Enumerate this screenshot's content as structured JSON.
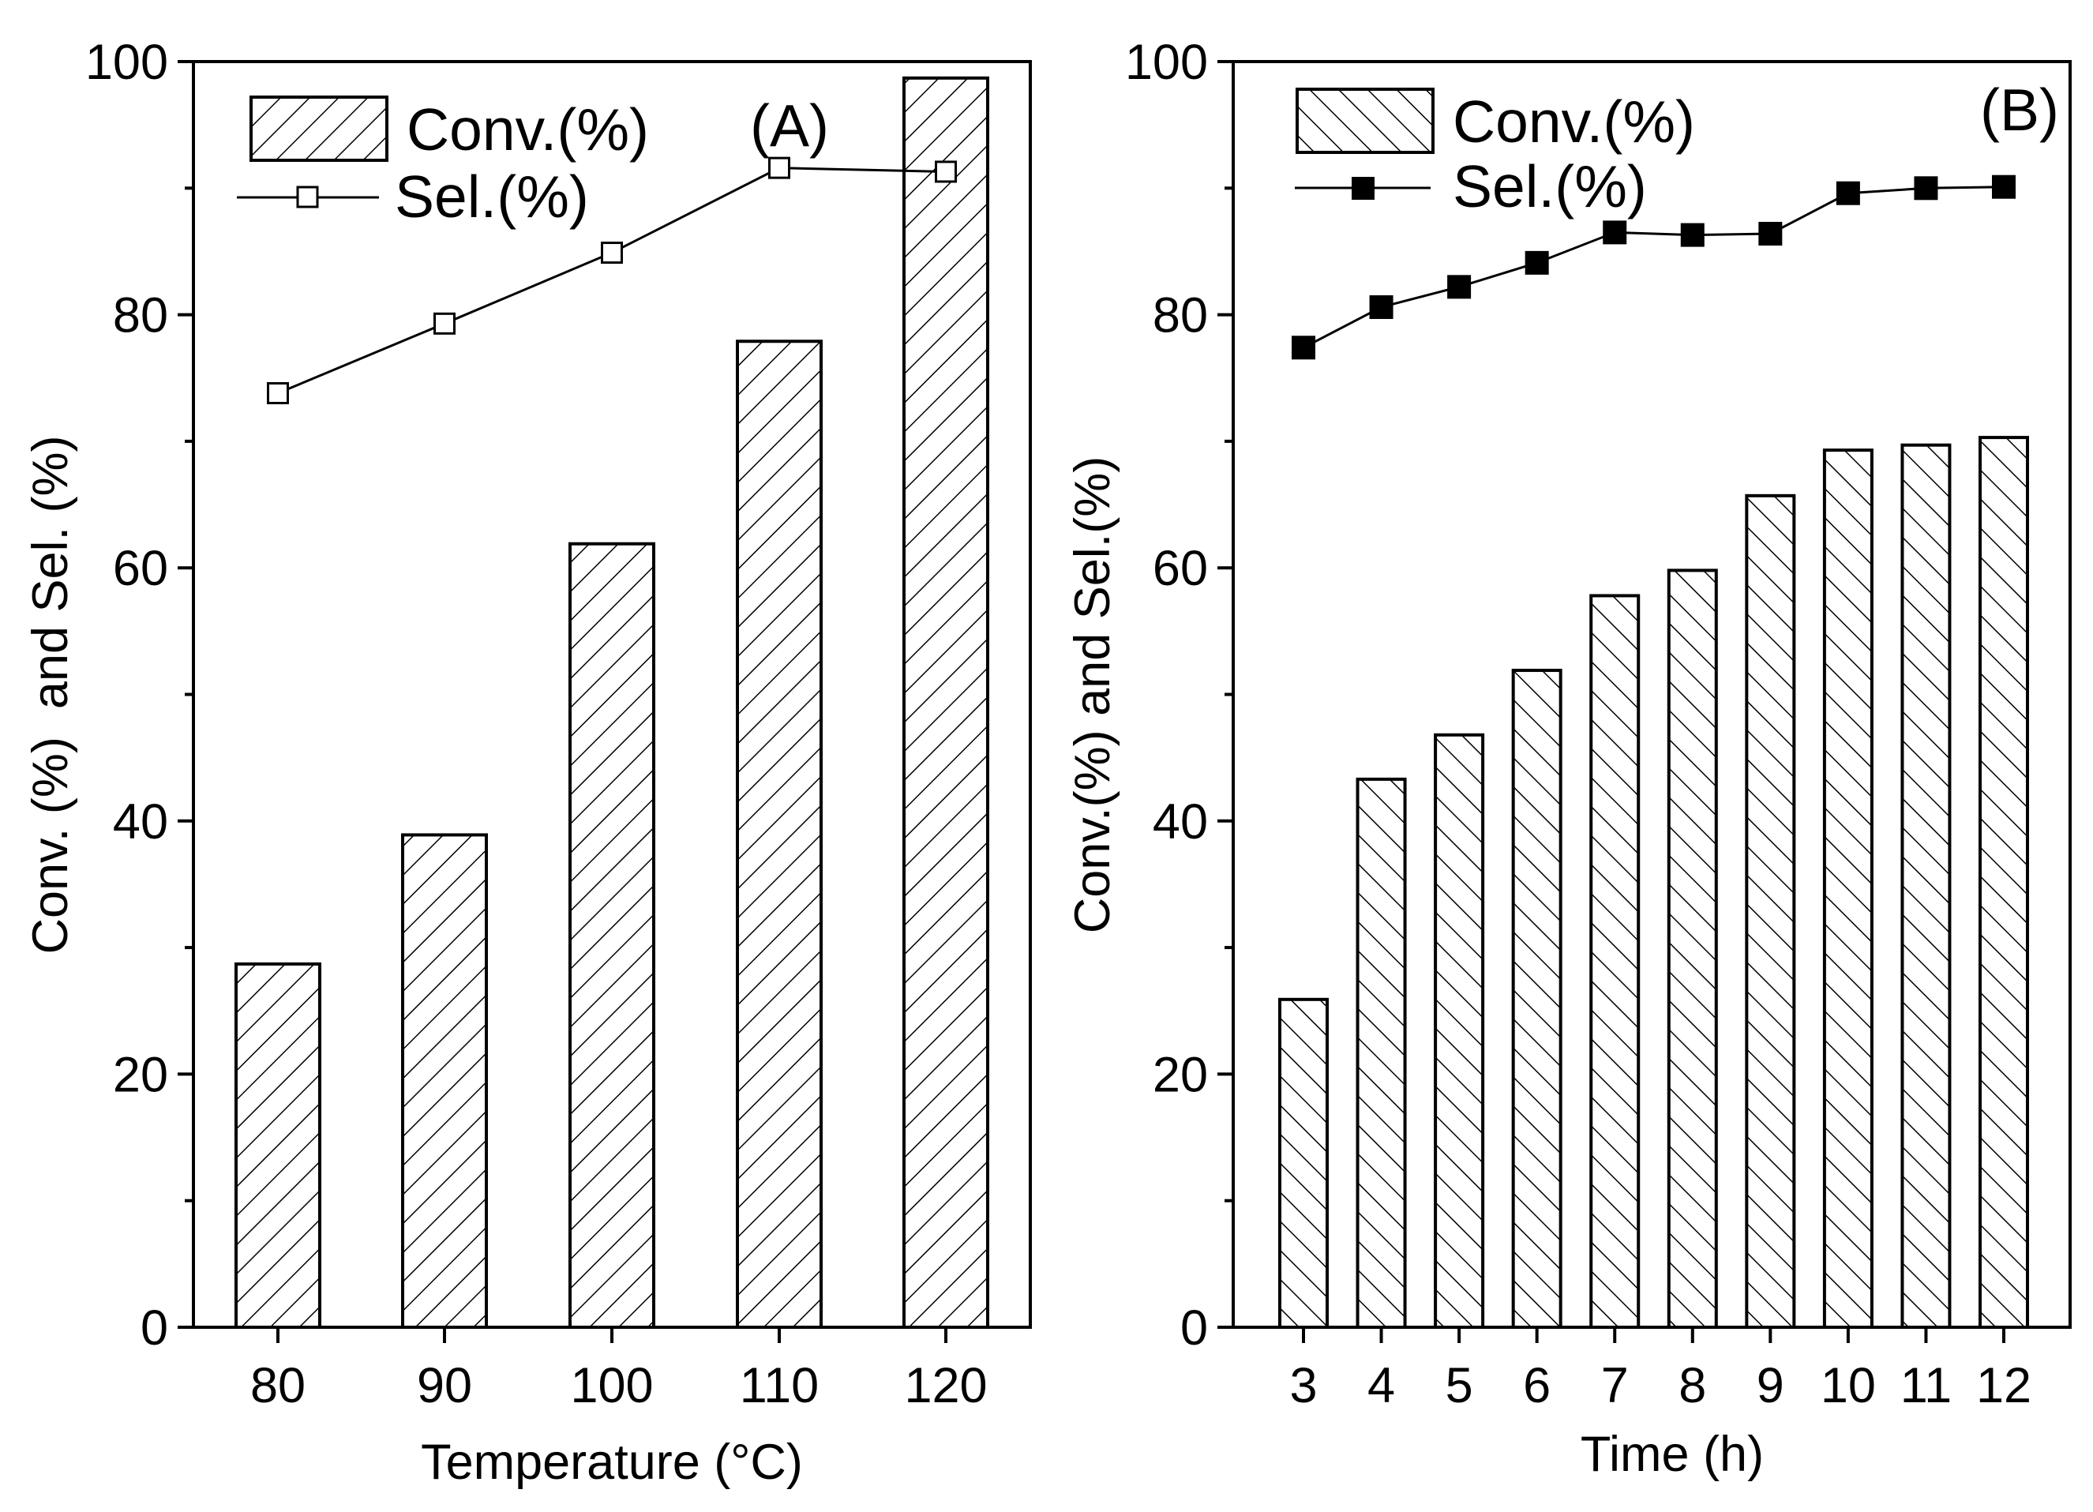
{
  "chart_data": [
    {
      "type": "bar",
      "panel_label": "(A)",
      "xlabel": "Temperature (°C)",
      "ylabel": "Conv. (%)  and Sel. (%)",
      "ylim": [
        0,
        100
      ],
      "yticks": [
        "0",
        "20",
        "40",
        "60",
        "80",
        "100"
      ],
      "categories": [
        "80",
        "90",
        "100",
        "110",
        "120"
      ],
      "series": [
        {
          "name": "Conv.(%)",
          "kind": "bar",
          "values": [
            28.7,
            38.9,
            61.9,
            77.9,
            98.7
          ]
        },
        {
          "name": "Sel.(%)",
          "kind": "line",
          "marker": "open-square",
          "values": [
            73.8,
            79.3,
            84.9,
            91.6,
            91.3
          ]
        }
      ],
      "legend": [
        "Conv.(%)",
        "Sel.(%)"
      ]
    },
    {
      "type": "bar",
      "panel_label": "(B)",
      "xlabel": "Time (h)",
      "ylabel": "Conv.(%) and Sel.(%)",
      "ylim": [
        0,
        100
      ],
      "yticks": [
        "0",
        "20",
        "40",
        "60",
        "80",
        "100"
      ],
      "categories": [
        "3",
        "4",
        "5",
        "6",
        "7",
        "8",
        "9",
        "10",
        "11",
        "12"
      ],
      "series": [
        {
          "name": "Conv.(%)",
          "kind": "bar",
          "values": [
            25.9,
            43.3,
            46.8,
            51.9,
            57.8,
            59.8,
            65.7,
            69.3,
            69.7,
            70.3
          ]
        },
        {
          "name": "Sel.(%)",
          "kind": "line",
          "marker": "filled-square",
          "values": [
            77.4,
            80.6,
            82.2,
            84.1,
            86.5,
            86.3,
            86.4,
            89.6,
            90.0,
            90.1
          ]
        }
      ],
      "legend": [
        "Conv.(%)",
        "Sel.(%)"
      ]
    }
  ]
}
